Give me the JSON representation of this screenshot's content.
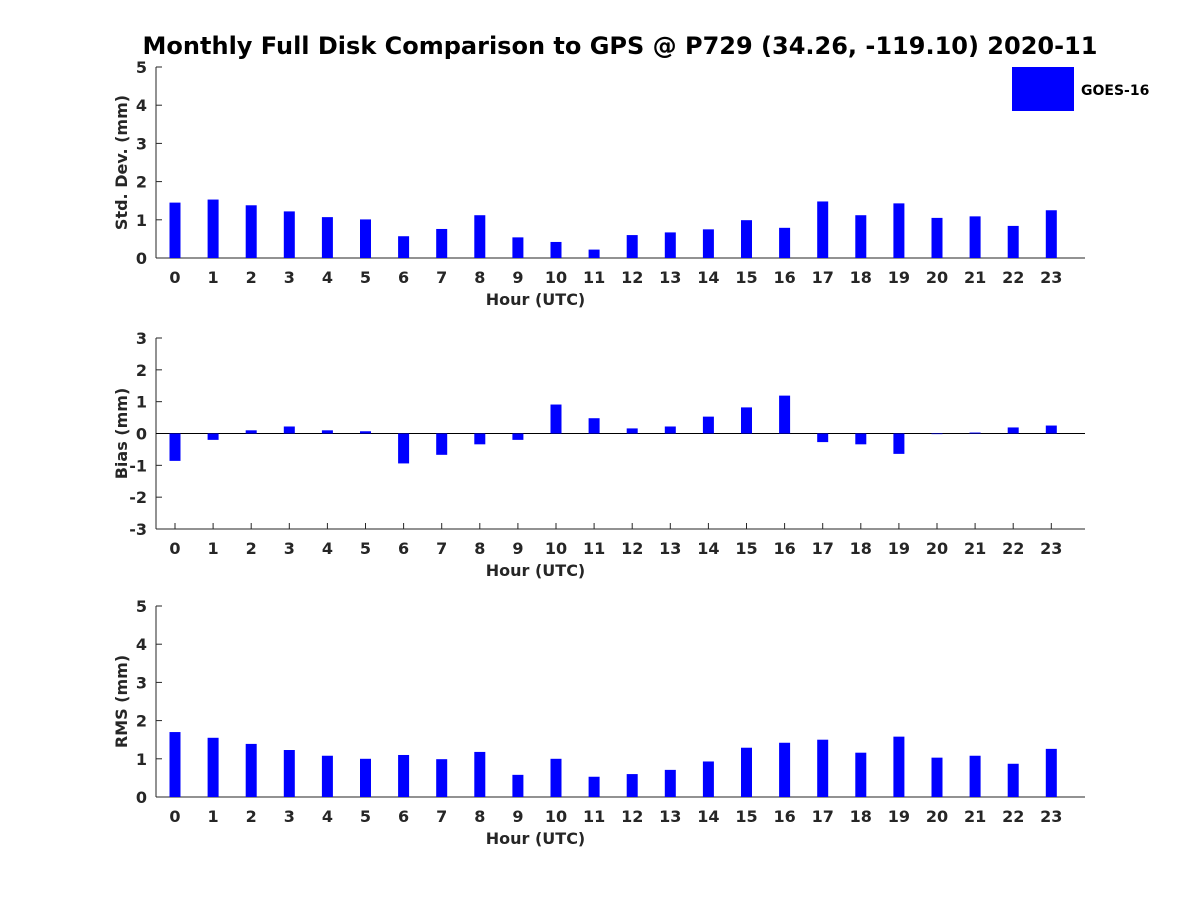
{
  "chart_data": {
    "title": "Monthly Full Disk Comparison to GPS @ P729 (34.26, -119.10) 2020-11",
    "legend": {
      "label": "GOES-16",
      "color": "#0000ff",
      "placement": "top-right"
    },
    "bar_color": "#0000ff",
    "panels": [
      {
        "type": "bar",
        "ylabel": "Std. Dev. (mm)",
        "xlabel": "Hour (UTC)",
        "ylim": [
          0,
          5
        ],
        "yticks": [
          0,
          1,
          2,
          3,
          4,
          5
        ],
        "categories": [
          "0",
          "1",
          "2",
          "3",
          "4",
          "5",
          "6",
          "7",
          "8",
          "9",
          "10",
          "11",
          "12",
          "13",
          "14",
          "15",
          "16",
          "17",
          "18",
          "19",
          "20",
          "21",
          "22",
          "23"
        ],
        "values": [
          1.45,
          1.53,
          1.38,
          1.22,
          1.07,
          1.01,
          0.57,
          0.76,
          1.12,
          0.54,
          0.42,
          0.22,
          0.6,
          0.67,
          0.75,
          0.99,
          0.79,
          1.48,
          1.12,
          1.43,
          1.05,
          1.09,
          0.84,
          1.25
        ]
      },
      {
        "type": "bar",
        "ylabel": "Bias (mm)",
        "xlabel": "Hour (UTC)",
        "ylim": [
          -3,
          3
        ],
        "yticks": [
          -3,
          -2,
          -1,
          0,
          1,
          2,
          3
        ],
        "categories": [
          "0",
          "1",
          "2",
          "3",
          "4",
          "5",
          "6",
          "7",
          "8",
          "9",
          "10",
          "11",
          "12",
          "13",
          "14",
          "15",
          "16",
          "17",
          "18",
          "19",
          "20",
          "21",
          "22",
          "23"
        ],
        "values": [
          -0.86,
          -0.2,
          0.1,
          0.22,
          0.1,
          0.07,
          -0.94,
          -0.67,
          -0.34,
          -0.2,
          0.91,
          0.48,
          0.16,
          0.22,
          0.53,
          0.82,
          1.19,
          -0.27,
          -0.34,
          -0.64,
          -0.02,
          0.03,
          0.19,
          0.25
        ]
      },
      {
        "type": "bar",
        "ylabel": "RMS (mm)",
        "xlabel": "Hour (UTC)",
        "ylim": [
          0,
          5
        ],
        "yticks": [
          0,
          1,
          2,
          3,
          4,
          5
        ],
        "categories": [
          "0",
          "1",
          "2",
          "3",
          "4",
          "5",
          "6",
          "7",
          "8",
          "9",
          "10",
          "11",
          "12",
          "13",
          "14",
          "15",
          "16",
          "17",
          "18",
          "19",
          "20",
          "21",
          "22",
          "23"
        ],
        "values": [
          1.7,
          1.55,
          1.39,
          1.23,
          1.08,
          1.0,
          1.1,
          0.99,
          1.18,
          0.58,
          1.0,
          0.53,
          0.6,
          0.71,
          0.93,
          1.29,
          1.42,
          1.5,
          1.16,
          1.58,
          1.03,
          1.08,
          0.87,
          1.26
        ]
      }
    ]
  }
}
